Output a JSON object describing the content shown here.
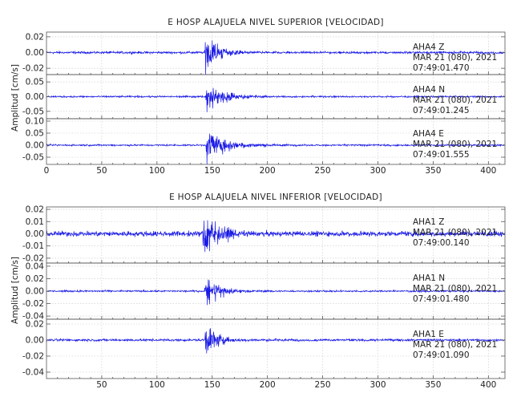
{
  "chart_data": [
    {
      "type": "line",
      "title": "E HOSP ALAJUELA NIVEL SUPERIOR [VELOCIDAD]",
      "ylabel": "Amplitud [cm/s]",
      "xlabel": "",
      "xlim": [
        0,
        415
      ],
      "x_ticks": [
        "0",
        "50",
        "100",
        "150",
        "200",
        "250",
        "300",
        "350",
        "400"
      ],
      "grid": true,
      "series": [
        {
          "name": "AHA4 Z",
          "station": "AHA4",
          "component": "Z",
          "date": "MAR 21 (080), 2021",
          "time": "07:49:01.470",
          "y_ticks": [
            "0.02",
            "0.00",
            "-0.02"
          ],
          "ylim": [
            -0.028,
            0.026
          ],
          "onset_s": 143,
          "peak_cm_s": 0.024,
          "noise_cm_s": 0.0012,
          "decay_s": 14
        },
        {
          "name": "AHA4 N",
          "station": "AHA4",
          "component": "N",
          "date": "MAR 21 (080), 2021",
          "time": "07:49:01.245",
          "y_ticks": [
            "0.05",
            "0.00",
            "-0.05"
          ],
          "ylim": [
            -0.075,
            0.075
          ],
          "onset_s": 144,
          "peak_cm_s": 0.05,
          "noise_cm_s": 0.0025,
          "decay_s": 18
        },
        {
          "name": "AHA4 E",
          "station": "AHA4",
          "component": "E",
          "date": "MAR 21 (080), 2021",
          "time": "07:49:01.555",
          "y_ticks": [
            "0.10",
            "0.05",
            "0.00",
            "-0.05"
          ],
          "ylim": [
            -0.08,
            0.11
          ],
          "onset_s": 144,
          "peak_cm_s": 0.07,
          "noise_cm_s": 0.003,
          "decay_s": 20
        }
      ]
    },
    {
      "type": "line",
      "title": "E HOSP ALAJUELA NIVEL INFERIOR [VELOCIDAD]",
      "ylabel": "Amplitud [cm/s]",
      "xlabel": "",
      "xlim": [
        0,
        415
      ],
      "x_ticks": [
        "50",
        "100",
        "150",
        "200",
        "250",
        "300",
        "350",
        "400"
      ],
      "grid": true,
      "series": [
        {
          "name": "AHA1 Z",
          "station": "AHA1",
          "component": "Z",
          "date": "MAR 21 (080), 2021",
          "time": "07:49:00.140",
          "y_ticks": [
            "0.02",
            "0.01",
            "0.00",
            "-0.01",
            "-0.02"
          ],
          "ylim": [
            -0.024,
            0.022
          ],
          "onset_s": 141,
          "peak_cm_s": 0.021,
          "noise_cm_s": 0.0018,
          "decay_s": 15
        },
        {
          "name": "AHA1 N",
          "station": "AHA1",
          "component": "N",
          "date": "MAR 21 (080), 2021",
          "time": "07:49:01.480",
          "y_ticks": [
            "0.04",
            "0.02",
            "0.00",
            "-0.02",
            "-0.04"
          ],
          "ylim": [
            -0.045,
            0.045
          ],
          "onset_s": 143,
          "peak_cm_s": 0.028,
          "noise_cm_s": 0.0012,
          "decay_s": 14
        },
        {
          "name": "AHA1 E",
          "station": "AHA1",
          "component": "E",
          "date": "MAR 21 (080), 2021",
          "time": "07:49:01.090",
          "y_ticks": [
            "0.02",
            "0.00",
            "-0.02",
            "-0.04"
          ],
          "ylim": [
            -0.048,
            0.026
          ],
          "onset_s": 143,
          "peak_cm_s": 0.022,
          "noise_cm_s": 0.0012,
          "decay_s": 12
        }
      ]
    }
  ]
}
